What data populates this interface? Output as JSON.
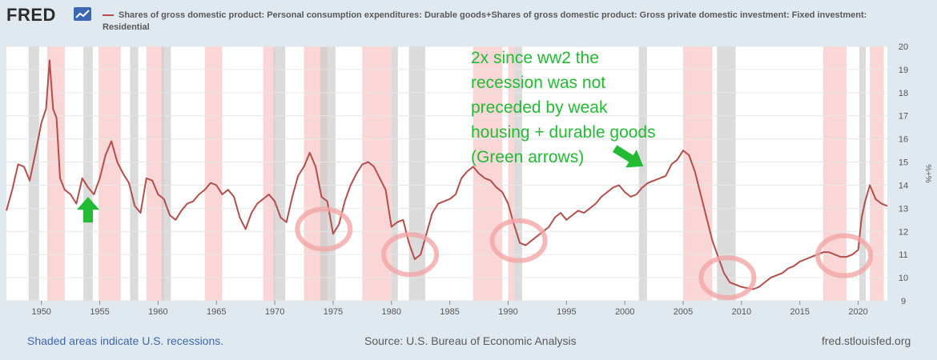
{
  "header": {
    "logo_text": "FRED",
    "legend_text": "Shares of gross domestic product: Personal consumption expenditures: Durable goods+Shares of gross domestic product: Gross private domestic investment: Fixed investment: Residential",
    "series_color": "#b54e4b"
  },
  "footer": {
    "recession_note": "Shaded areas indicate U.S. recessions.",
    "source": "Source: U.S. Bureau of Economic Analysis",
    "site": "fred.stlouisfed.org"
  },
  "annotation": {
    "lines": [
      "2x since ww2 the",
      "recession was not",
      "preceded by weak",
      "housing + durable goods",
      "(Green arrows)"
    ],
    "color": "#22bb33"
  },
  "chart_data": {
    "type": "line",
    "title": "",
    "xlabel": "",
    "ylabel": "%+%",
    "xlim": [
      1947,
      2022.5
    ],
    "ylim": [
      9,
      20
    ],
    "x_ticks": [
      1950,
      1955,
      1960,
      1965,
      1970,
      1975,
      1980,
      1985,
      1990,
      1995,
      2000,
      2005,
      2010,
      2015,
      2020
    ],
    "y_ticks": [
      9,
      10,
      11,
      12,
      13,
      14,
      15,
      16,
      17,
      18,
      19,
      20
    ],
    "recessions": [
      [
        1948.9,
        1949.8
      ],
      [
        1953.6,
        1954.4
      ],
      [
        1957.6,
        1958.3
      ],
      [
        1960.3,
        1961.1
      ],
      [
        1969.9,
        1970.9
      ],
      [
        1973.9,
        1975.2
      ],
      [
        1980.0,
        1980.5
      ],
      [
        1981.5,
        1982.9
      ],
      [
        1990.5,
        1991.2
      ],
      [
        2001.2,
        2001.9
      ],
      [
        2007.9,
        2009.5
      ],
      [
        2020.1,
        2020.4
      ]
    ],
    "annotation_bands": [
      [
        1950.5,
        1952.0
      ],
      [
        1954.9,
        1956.8
      ],
      [
        1959.0,
        1960.5
      ],
      [
        1964.0,
        1965.5
      ],
      [
        1969.0,
        1970.0
      ],
      [
        1972.5,
        1974.5
      ],
      [
        1977.5,
        1980.0
      ],
      [
        1987.0,
        1989.5
      ],
      [
        1990.0,
        1990.5
      ],
      [
        2005.0,
        2007.5
      ],
      [
        2017.0,
        2019.0
      ],
      [
        2021.0,
        2022.2
      ]
    ],
    "highlight_circles": [
      {
        "x": 1974.2,
        "y": 12.1
      },
      {
        "x": 1981.6,
        "y": 11.0
      },
      {
        "x": 1990.9,
        "y": 11.6
      },
      {
        "x": 2008.8,
        "y": 10.0
      },
      {
        "x": 2018.8,
        "y": 10.95
      }
    ],
    "arrows": [
      {
        "x": 1954.0,
        "y": 12.8,
        "direction": "up"
      },
      {
        "x": 2001.0,
        "y": 15.0,
        "direction": "down-right"
      }
    ],
    "series": [
      {
        "name": "Durable goods + Residential investment share of GDP",
        "x": [
          1947.0,
          1947.5,
          1948.0,
          1948.5,
          1949.0,
          1949.5,
          1950.0,
          1950.4,
          1950.7,
          1951.0,
          1951.3,
          1951.6,
          1952.0,
          1952.5,
          1953.0,
          1953.5,
          1954.0,
          1954.5,
          1955.0,
          1955.5,
          1956.0,
          1956.5,
          1957.0,
          1957.5,
          1958.0,
          1958.5,
          1959.0,
          1959.5,
          1960.0,
          1960.5,
          1961.0,
          1961.5,
          1962.0,
          1962.5,
          1963.0,
          1963.5,
          1964.0,
          1964.5,
          1965.0,
          1965.5,
          1966.0,
          1966.5,
          1967.0,
          1967.5,
          1968.0,
          1968.5,
          1969.0,
          1969.5,
          1970.0,
          1970.5,
          1971.0,
          1971.5,
          1972.0,
          1972.5,
          1973.0,
          1973.5,
          1974.0,
          1974.5,
          1975.0,
          1975.5,
          1976.0,
          1976.5,
          1977.0,
          1977.5,
          1978.0,
          1978.5,
          1979.0,
          1979.5,
          1980.0,
          1980.5,
          1981.0,
          1981.5,
          1982.0,
          1982.5,
          1983.0,
          1983.5,
          1984.0,
          1984.5,
          1985.0,
          1985.5,
          1986.0,
          1986.5,
          1987.0,
          1987.5,
          1988.0,
          1988.5,
          1989.0,
          1989.5,
          1990.0,
          1990.5,
          1991.0,
          1991.5,
          1992.0,
          1992.5,
          1993.0,
          1993.5,
          1994.0,
          1994.5,
          1995.0,
          1995.5,
          1996.0,
          1996.5,
          1997.0,
          1997.5,
          1998.0,
          1998.5,
          1999.0,
          1999.5,
          2000.0,
          2000.5,
          2001.0,
          2001.5,
          2002.0,
          2002.5,
          2003.0,
          2003.5,
          2004.0,
          2004.5,
          2005.0,
          2005.5,
          2006.0,
          2006.5,
          2007.0,
          2007.5,
          2008.0,
          2008.5,
          2009.0,
          2009.5,
          2010.0,
          2010.5,
          2011.0,
          2011.5,
          2012.0,
          2012.5,
          2013.0,
          2013.5,
          2014.0,
          2014.5,
          2015.0,
          2015.5,
          2016.0,
          2016.5,
          2017.0,
          2017.5,
          2018.0,
          2018.5,
          2019.0,
          2019.5,
          2020.0,
          2020.3,
          2020.6,
          2021.0,
          2021.5,
          2022.0,
          2022.5
        ],
        "y": [
          12.9,
          13.8,
          14.9,
          14.8,
          14.2,
          15.4,
          16.7,
          17.3,
          19.4,
          17.3,
          16.9,
          14.3,
          13.8,
          13.6,
          13.2,
          14.3,
          13.9,
          13.6,
          14.3,
          15.3,
          15.9,
          15.0,
          14.5,
          14.1,
          13.1,
          12.8,
          14.3,
          14.2,
          13.6,
          13.4,
          12.7,
          12.5,
          12.9,
          13.2,
          13.3,
          13.6,
          13.8,
          14.1,
          14.0,
          13.6,
          13.8,
          13.5,
          12.6,
          12.1,
          12.8,
          13.2,
          13.4,
          13.6,
          13.3,
          12.6,
          12.4,
          13.5,
          14.4,
          14.8,
          15.4,
          14.8,
          13.5,
          13.3,
          11.9,
          12.3,
          13.3,
          14.0,
          14.5,
          14.9,
          15.0,
          14.8,
          14.3,
          13.8,
          12.2,
          12.4,
          12.5,
          11.5,
          10.8,
          11.0,
          11.9,
          12.8,
          13.2,
          13.3,
          13.4,
          13.6,
          14.3,
          14.6,
          14.8,
          14.5,
          14.3,
          14.2,
          13.9,
          13.7,
          13.2,
          12.3,
          11.5,
          11.4,
          11.6,
          11.8,
          12.0,
          12.2,
          12.6,
          12.8,
          12.5,
          12.7,
          12.9,
          12.8,
          13.0,
          13.2,
          13.5,
          13.7,
          13.9,
          14.0,
          13.7,
          13.5,
          13.6,
          13.9,
          14.1,
          14.2,
          14.3,
          14.4,
          14.9,
          15.1,
          15.5,
          15.3,
          14.6,
          13.6,
          12.6,
          11.6,
          10.9,
          10.2,
          9.8,
          9.7,
          9.6,
          9.55,
          9.5,
          9.6,
          9.8,
          10.0,
          10.1,
          10.2,
          10.4,
          10.5,
          10.7,
          10.8,
          10.9,
          11.0,
          11.1,
          11.1,
          11.0,
          10.9,
          10.9,
          11.0,
          11.2,
          12.6,
          13.3,
          14.0,
          13.4,
          13.2,
          13.1
        ]
      }
    ]
  }
}
